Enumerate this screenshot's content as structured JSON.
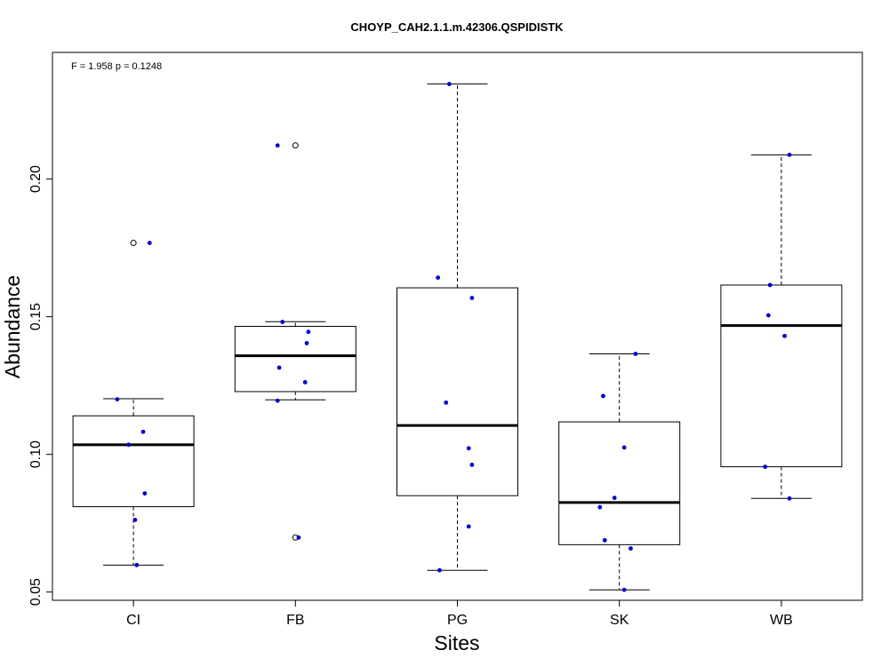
{
  "chart_data": {
    "type": "box",
    "title": "CHOYP_CAH2.1.1.m.42306.QSPIDISTK",
    "xlabel": "Sites",
    "ylabel": "Abundance",
    "annotation": "F = 1.958 p = 0.1248",
    "ylim": [
      0.047,
      0.246
    ],
    "yticks": [
      0.05,
      0.1,
      0.15,
      0.2
    ],
    "ytick_labels": [
      "0.05",
      "0.10",
      "0.15",
      "0.20"
    ],
    "grid": false,
    "box_color": "#000000",
    "point_color": "#0000cc",
    "categories": [
      "CI",
      "FB",
      "PG",
      "SK",
      "WB"
    ],
    "boxes": [
      {
        "site": "CI",
        "whisker_low": 0.0598,
        "q1": 0.081,
        "median": 0.1035,
        "q3": 0.114,
        "whisker_high": 0.1202,
        "outliers": [
          0.1768
        ]
      },
      {
        "site": "FB",
        "whisker_low": 0.1198,
        "q1": 0.1228,
        "median": 0.1358,
        "q3": 0.1465,
        "whisker_high": 0.1482,
        "outliers": [
          0.2122,
          0.0698
        ]
      },
      {
        "site": "PG",
        "whisker_low": 0.0579,
        "q1": 0.085,
        "median": 0.1105,
        "q3": 0.1605,
        "whisker_high": 0.2345,
        "outliers": []
      },
      {
        "site": "SK",
        "whisker_low": 0.0508,
        "q1": 0.0672,
        "median": 0.0825,
        "q3": 0.1118,
        "whisker_high": 0.1365,
        "outliers": []
      },
      {
        "site": "WB",
        "whisker_low": 0.084,
        "q1": 0.0955,
        "median": 0.1468,
        "q3": 0.1615,
        "whisker_high": 0.2088,
        "outliers": []
      }
    ],
    "points": [
      {
        "site": "CI",
        "jitter": -0.1,
        "y": 0.12
      },
      {
        "site": "CI",
        "jitter": 0.06,
        "y": 0.1082
      },
      {
        "site": "CI",
        "jitter": -0.03,
        "y": 0.1035
      },
      {
        "site": "CI",
        "jitter": 0.07,
        "y": 0.0858
      },
      {
        "site": "CI",
        "jitter": 0.01,
        "y": 0.0762
      },
      {
        "site": "CI",
        "jitter": 0.02,
        "y": 0.0598
      },
      {
        "site": "CI",
        "jitter": 0.1,
        "y": 0.1768
      },
      {
        "site": "FB",
        "jitter": -0.11,
        "y": 0.2122
      },
      {
        "site": "FB",
        "jitter": -0.08,
        "y": 0.1481
      },
      {
        "site": "FB",
        "jitter": 0.08,
        "y": 0.1445
      },
      {
        "site": "FB",
        "jitter": 0.07,
        "y": 0.1404
      },
      {
        "site": "FB",
        "jitter": -0.1,
        "y": 0.1315
      },
      {
        "site": "FB",
        "jitter": 0.06,
        "y": 0.1262
      },
      {
        "site": "FB",
        "jitter": -0.11,
        "y": 0.1195
      },
      {
        "site": "FB",
        "jitter": 0.02,
        "y": 0.0698
      },
      {
        "site": "PG",
        "jitter": -0.12,
        "y": 0.1642
      },
      {
        "site": "PG",
        "jitter": 0.09,
        "y": 0.1568
      },
      {
        "site": "PG",
        "jitter": -0.07,
        "y": 0.1188
      },
      {
        "site": "PG",
        "jitter": 0.07,
        "y": 0.1022
      },
      {
        "site": "PG",
        "jitter": 0.09,
        "y": 0.0962
      },
      {
        "site": "PG",
        "jitter": 0.07,
        "y": 0.0738
      },
      {
        "site": "PG",
        "jitter": -0.11,
        "y": 0.0579
      },
      {
        "site": "PG",
        "jitter": -0.05,
        "y": 0.2345
      },
      {
        "site": "SK",
        "jitter": 0.1,
        "y": 0.1365
      },
      {
        "site": "SK",
        "jitter": -0.1,
        "y": 0.1212
      },
      {
        "site": "SK",
        "jitter": 0.03,
        "y": 0.1025
      },
      {
        "site": "SK",
        "jitter": -0.03,
        "y": 0.0842
      },
      {
        "site": "SK",
        "jitter": -0.12,
        "y": 0.0808
      },
      {
        "site": "SK",
        "jitter": -0.09,
        "y": 0.0688
      },
      {
        "site": "SK",
        "jitter": 0.07,
        "y": 0.0658
      },
      {
        "site": "SK",
        "jitter": 0.03,
        "y": 0.0508
      },
      {
        "site": "WB",
        "jitter": 0.05,
        "y": 0.2088
      },
      {
        "site": "WB",
        "jitter": -0.07,
        "y": 0.1615
      },
      {
        "site": "WB",
        "jitter": -0.08,
        "y": 0.1505
      },
      {
        "site": "WB",
        "jitter": 0.02,
        "y": 0.143
      },
      {
        "site": "WB",
        "jitter": -0.1,
        "y": 0.0955
      },
      {
        "site": "WB",
        "jitter": 0.05,
        "y": 0.084
      }
    ]
  }
}
